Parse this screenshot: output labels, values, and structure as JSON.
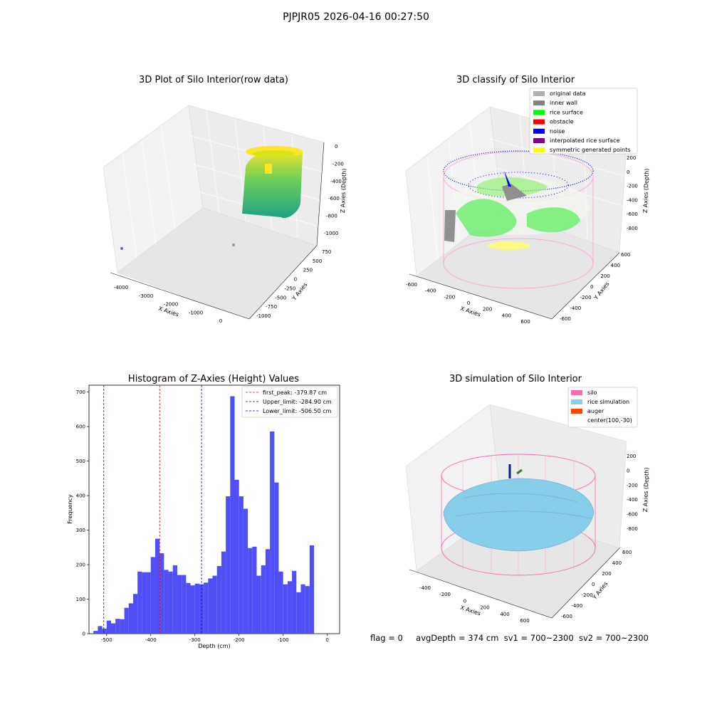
{
  "suptitle": "PJPJR05 2026-04-16 00:27:50",
  "footer": {
    "flag": "flag = 0",
    "avg": "avgDepth = 374 cm",
    "sv1": "sv1 = 700~2300",
    "sv2": "sv2 = 700~2300"
  },
  "colors": {
    "hist_bar": "#4b4bf5",
    "peak_line": "#ff0000",
    "limit_line": "#0000ff",
    "silo_wire": "#ff69b4",
    "rice_sim": "#87ceeb",
    "auger": "#ff4500",
    "rice_surface": "#00ff00",
    "noise": "#0000ff",
    "inner_wall": "#808080"
  },
  "panel1": {
    "title": "3D Plot of Silo Interior(row data)",
    "xlabel": "X Axies",
    "ylabel": "Y Axies",
    "zlabel": "Z Axies (Depth)",
    "xticks": [
      "-4000",
      "-3000",
      "-2000",
      "-1000",
      "0"
    ],
    "yticks": [
      "750",
      "500",
      "250",
      "0",
      "-250",
      "-500",
      "-750",
      "-1000"
    ],
    "zticks": [
      "0",
      "-200",
      "-400",
      "-600",
      "-800",
      "-1000"
    ]
  },
  "panel2": {
    "title": "3D classify of Silo Interior",
    "xlabel": "X Axies",
    "ylabel": "Y Axies",
    "zlabel": "Z Axies (Depth)",
    "xticks": [
      "-600",
      "-400",
      "-200",
      "0",
      "200",
      "400",
      "600"
    ],
    "yticks": [
      "600",
      "400",
      "200",
      "0",
      "-200",
      "-400",
      "-600"
    ],
    "zticks": [
      "200",
      "0",
      "-200",
      "-400",
      "-600",
      "-800"
    ],
    "legend": [
      {
        "label": "original data",
        "color": "#b0b0b0"
      },
      {
        "label": "inner wall",
        "color": "#808080"
      },
      {
        "label": "rice surface",
        "color": "#00ff00"
      },
      {
        "label": "obstacle",
        "color": "#ff0000"
      },
      {
        "label": "noise",
        "color": "#0000ff"
      },
      {
        "label": "interpolated rice surface",
        "color": "#800080"
      },
      {
        "label": "symmetric generated points",
        "color": "#ffff00"
      }
    ]
  },
  "panel3": {
    "legend": [
      {
        "label": "first_peak: -379.87 cm",
        "color": "#ff0000"
      },
      {
        "label": "Upper_limit: -284.90 cm",
        "color": "#0000ff"
      },
      {
        "label": "Lower_limit: -506.50 cm",
        "color": "#0000ff"
      }
    ]
  },
  "panel4": {
    "title": "3D simulation of Silo Interior",
    "xlabel": "X Axies",
    "ylabel": "Y Axies",
    "zlabel": "Z Axies (Depth)",
    "xticks": [
      "-400",
      "-200",
      "0",
      "200",
      "400",
      "600"
    ],
    "yticks": [
      "600",
      "400",
      "200",
      "0",
      "-200",
      "-400",
      "-600"
    ],
    "zticks": [
      "200",
      "0",
      "-200",
      "-400",
      "-600",
      "-800"
    ],
    "legend": [
      {
        "label": "silo",
        "color": "#ff69b4"
      },
      {
        "label": "rice simulation",
        "color": "#87ceeb"
      },
      {
        "label": "auger",
        "color": "#ff4500"
      },
      {
        "label": "center(100,-30)",
        "color": ""
      }
    ]
  },
  "chart_data": [
    {
      "type": "scatter",
      "title": "3D Plot of Silo Interior(row data)",
      "xlabel": "X Axies",
      "ylabel": "Y Axies",
      "zlabel": "Z Axies (Depth)",
      "xlim": [
        -4500,
        500
      ],
      "ylim": [
        -1000,
        750
      ],
      "zlim": [
        -1100,
        0
      ]
    },
    {
      "type": "scatter",
      "title": "3D classify of Silo Interior",
      "xlabel": "X Axies",
      "ylabel": "Y Axies",
      "zlabel": "Z Axies (Depth)",
      "xlim": [
        -650,
        650
      ],
      "ylim": [
        -650,
        650
      ],
      "zlim": [
        -900,
        250
      ]
    },
    {
      "type": "bar",
      "title": "Histogram of Z-Axies (Height) Values",
      "xlabel": "Depth (cm)",
      "ylabel": "Frequency",
      "xlim": [
        -540,
        28
      ],
      "ylim": [
        0,
        720
      ],
      "xticks": [
        -500,
        -400,
        -300,
        -200,
        -100,
        0
      ],
      "yticks": [
        0,
        100,
        200,
        300,
        400,
        500,
        600,
        700
      ],
      "bin_width": 10,
      "bin_start": -530,
      "values": [
        8,
        22,
        15,
        38,
        30,
        43,
        42,
        75,
        88,
        115,
        180,
        178,
        178,
        222,
        275,
        233,
        185,
        180,
        198,
        170,
        170,
        147,
        140,
        145,
        143,
        148,
        160,
        168,
        196,
        238,
        398,
        688,
        446,
        398,
        362,
        248,
        252,
        168,
        198,
        245,
        586,
        438,
        180,
        143,
        152,
        182,
        120,
        143,
        138,
        256
      ],
      "vlines": [
        {
          "name": "first_peak: -379.87 cm",
          "x": -379.87,
          "color": "#ff0000"
        },
        {
          "name": "Upper_limit: -284.90 cm",
          "x": -284.9,
          "color": "#0000ff"
        },
        {
          "name": "Lower_limit: -506.50 cm",
          "x": -506.5,
          "color": "#0000ff"
        }
      ]
    },
    {
      "type": "scatter",
      "title": "3D simulation of Silo Interior",
      "xlabel": "X Axies",
      "ylabel": "Y Axies",
      "zlabel": "Z Axies (Depth)",
      "xlim": [
        -550,
        750
      ],
      "ylim": [
        -700,
        650
      ],
      "zlim": [
        -900,
        300
      ]
    }
  ]
}
